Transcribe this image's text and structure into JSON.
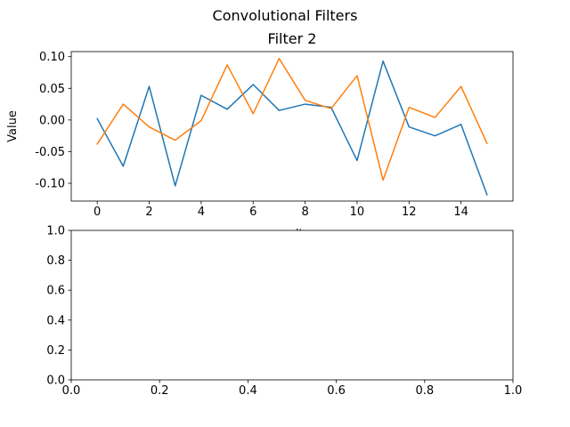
{
  "figure_title": "Convolutional Filters",
  "chart_data": [
    {
      "type": "line",
      "title": "Filter 2",
      "xlabel": "unit",
      "ylabel": "Value",
      "xlim": [
        -1,
        16
      ],
      "ylim": [
        -0.128,
        0.108
      ],
      "x_ticks": [
        0,
        2,
        4,
        6,
        8,
        10,
        12,
        14
      ],
      "y_ticks": [
        -0.1,
        -0.05,
        0.0,
        0.05,
        0.1
      ],
      "y_tick_labels": [
        "-0.10",
        "-0.05",
        "0.00",
        "0.05",
        "0.10"
      ],
      "x": [
        0,
        1,
        2,
        3,
        4,
        5,
        6,
        7,
        8,
        9,
        10,
        11,
        12,
        13,
        14,
        15
      ],
      "series": [
        {
          "color": "#1f77b4",
          "values": [
            0.002,
            -0.073,
            0.053,
            -0.104,
            0.039,
            0.017,
            0.056,
            0.015,
            0.025,
            0.02,
            -0.064,
            0.093,
            -0.011,
            -0.025,
            -0.007,
            -0.118
          ]
        },
        {
          "color": "#ff7f0e",
          "values": [
            -0.038,
            0.025,
            -0.011,
            -0.032,
            -0.001,
            0.087,
            0.01,
            0.097,
            0.031,
            0.018,
            0.07,
            -0.095,
            0.02,
            0.004,
            0.053,
            -0.037
          ]
        }
      ]
    },
    {
      "type": "line",
      "title": "",
      "xlim": [
        0,
        1
      ],
      "ylim": [
        0,
        1
      ],
      "x_ticks": [
        0,
        0.2,
        0.4,
        0.6,
        0.8,
        1.0
      ],
      "x_tick_labels": [
        "0.0",
        "0.2",
        "0.4",
        "0.6",
        "0.8",
        "1.0"
      ],
      "y_ticks": [
        0,
        0.2,
        0.4,
        0.6,
        0.8,
        1.0
      ],
      "y_tick_labels": [
        "0.0",
        "0.2",
        "0.4",
        "0.6",
        "0.8",
        "1.0"
      ],
      "series": []
    }
  ]
}
